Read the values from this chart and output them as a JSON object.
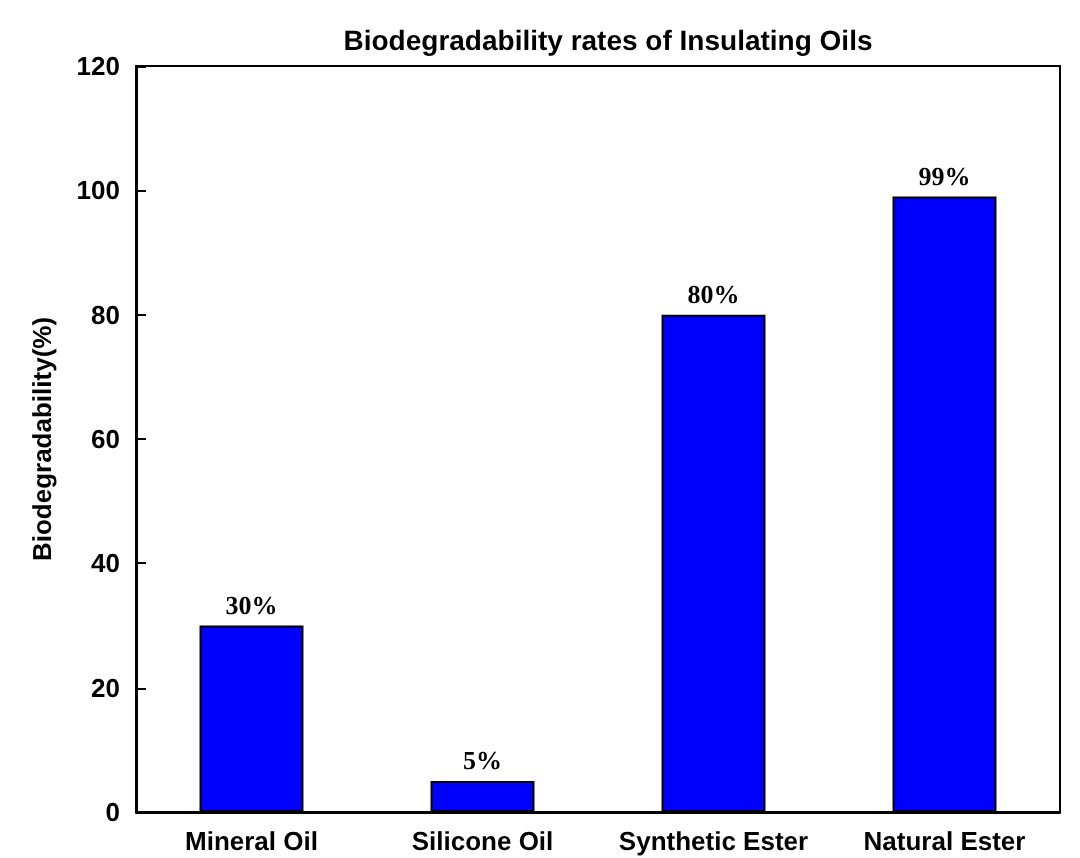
{
  "chart_data": {
    "type": "bar",
    "title": "Biodegradability rates of Insulating Oils",
    "ylabel": "Biodegradability(%)",
    "categories": [
      "Mineral Oil",
      "Silicone Oil",
      "Synthetic Ester",
      "Natural Ester"
    ],
    "values": [
      30,
      5,
      80,
      99
    ],
    "value_labels": [
      "30%",
      "5%",
      "80%",
      "99%"
    ],
    "color": "#0000ff",
    "ylim": [
      0,
      120
    ],
    "yticks": [
      0,
      20,
      40,
      60,
      80,
      100,
      120
    ],
    "grid": false
  }
}
